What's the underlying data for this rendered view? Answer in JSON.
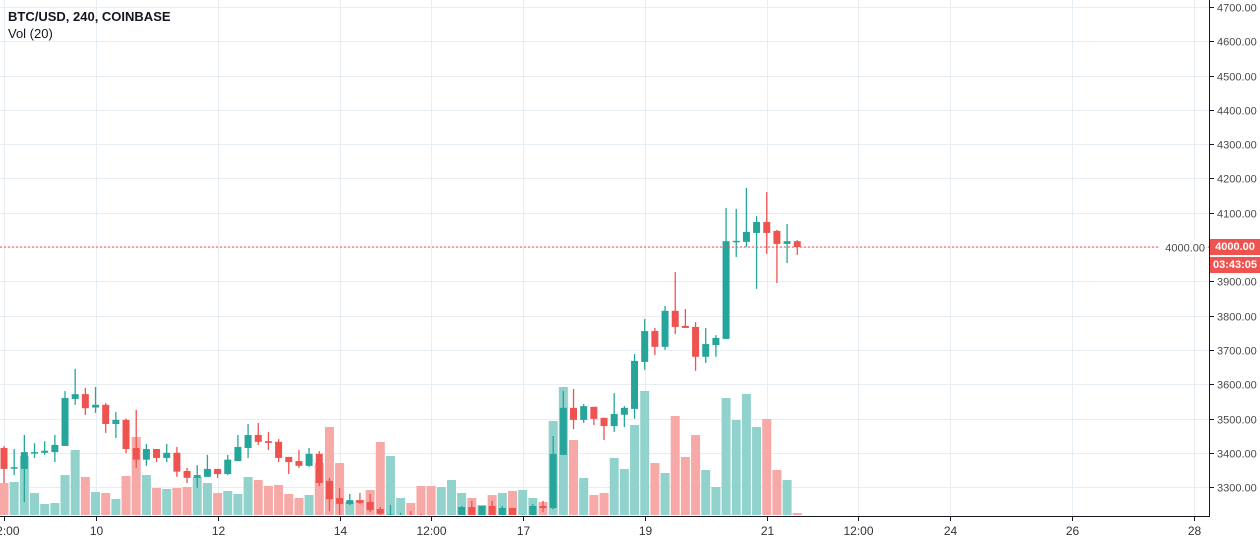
{
  "header": {
    "symbol": "BTC/USD, 240, COINBASE",
    "indicator": "Vol (20)"
  },
  "current_price": {
    "label": "4000.00",
    "countdown": "03:43:05"
  },
  "colors": {
    "up": "#26a69a",
    "down": "#ef5350",
    "up_volume": "#92d2cc",
    "down_volume": "#f7a9a7",
    "grid": "#e6edf3"
  },
  "chart_data": {
    "type": "candlestick",
    "title": "BTC/USD, 240, COINBASE",
    "ylim": [
      3219,
      4720
    ],
    "grid": true,
    "y_ticks": [
      "4700.00",
      "4600.00",
      "4500.00",
      "4400.00",
      "4300.00",
      "4200.00",
      "4100.00",
      "4000.00",
      "3900.00",
      "3800.00",
      "3700.00",
      "3600.00",
      "3500.00",
      "3400.00",
      "3300.00"
    ],
    "x_ticks": [
      "12:00",
      "10",
      "12",
      "14",
      "12:00",
      "17",
      "19",
      "21",
      "12:00",
      "24",
      "26",
      "28"
    ],
    "candle_fields": [
      "open",
      "high",
      "low",
      "close",
      "volume"
    ],
    "candles": [
      [
        3414,
        3420,
        3312,
        3353,
        32
      ],
      [
        3354,
        3411,
        3335,
        3358,
        33
      ],
      [
        3353,
        3452,
        3256,
        3402,
        59
      ],
      [
        3400,
        3428,
        3385,
        3402,
        22
      ],
      [
        3400,
        3434,
        3394,
        3406,
        11
      ],
      [
        3402,
        3452,
        3373,
        3423,
        12
      ],
      [
        3420,
        3580,
        3420,
        3560,
        40
      ],
      [
        3557,
        3645,
        3540,
        3571,
        65
      ],
      [
        3571,
        3589,
        3510,
        3530,
        38
      ],
      [
        3532,
        3592,
        3516,
        3540,
        23
      ],
      [
        3540,
        3545,
        3458,
        3484,
        22
      ],
      [
        3484,
        3519,
        3443,
        3496,
        16
      ],
      [
        3496,
        3500,
        3399,
        3411,
        39
      ],
      [
        3414,
        3525,
        3356,
        3380,
        78
      ],
      [
        3380,
        3426,
        3362,
        3411,
        40
      ],
      [
        3411,
        3411,
        3373,
        3385,
        27
      ],
      [
        3385,
        3426,
        3373,
        3400,
        26
      ],
      [
        3400,
        3417,
        3330,
        3345,
        27
      ],
      [
        3347,
        3356,
        3312,
        3327,
        28
      ],
      [
        3327,
        3364,
        3298,
        3335,
        38
      ],
      [
        3330,
        3394,
        3330,
        3353,
        32
      ],
      [
        3353,
        3353,
        3327,
        3338,
        22
      ],
      [
        3338,
        3394,
        3335,
        3380,
        24
      ],
      [
        3376,
        3452,
        3376,
        3417,
        21
      ],
      [
        3414,
        3484,
        3385,
        3452,
        38
      ],
      [
        3452,
        3487,
        3423,
        3432,
        35
      ],
      [
        3434,
        3461,
        3408,
        3429,
        29
      ],
      [
        3432,
        3440,
        3373,
        3385,
        30
      ],
      [
        3388,
        3388,
        3338,
        3373,
        21
      ],
      [
        3376,
        3408,
        3356,
        3362,
        17
      ],
      [
        3362,
        3414,
        3359,
        3397,
        20
      ],
      [
        3397,
        3405,
        3303,
        3312,
        52
      ],
      [
        3318,
        3327,
        3230,
        3265,
        88
      ],
      [
        3268,
        3298,
        3219,
        3251,
        52
      ],
      [
        3251,
        3280,
        3248,
        3262,
        13
      ],
      [
        3262,
        3283,
        3251,
        3254,
        15
      ],
      [
        3257,
        3280,
        3227,
        3233,
        25
      ],
      [
        3236,
        3242,
        3210,
        3222,
        73
      ],
      [
        3215,
        3248,
        3200,
        3220,
        59
      ],
      [
        3215,
        3225,
        3210,
        3218,
        17
      ],
      [
        3218,
        3230,
        3205,
        3214,
        12
      ],
      [
        3214,
        3222,
        3195,
        3205,
        29
      ],
      [
        3205,
        3212,
        3192,
        3200,
        29
      ],
      [
        3200,
        3218,
        3195,
        3214,
        28
      ],
      [
        3214,
        3220,
        3205,
        3216,
        35
      ],
      [
        3205,
        3245,
        3200,
        3242,
        22
      ],
      [
        3242,
        3260,
        3200,
        3210,
        17
      ],
      [
        3210,
        3245,
        3205,
        3245,
        10
      ],
      [
        3245,
        3260,
        3205,
        3210,
        20
      ],
      [
        3210,
        3245,
        3205,
        3239,
        22
      ],
      [
        3239,
        3239,
        3200,
        3212,
        24
      ],
      [
        3212,
        3220,
        3205,
        3215,
        25
      ],
      [
        3212,
        3251,
        3205,
        3245,
        17
      ],
      [
        3245,
        3260,
        3227,
        3239,
        13
      ],
      [
        3239,
        3449,
        3235,
        3397,
        94
      ],
      [
        3394,
        3580,
        3394,
        3531,
        128
      ],
      [
        3531,
        3586,
        3469,
        3496,
        75
      ],
      [
        3496,
        3542,
        3487,
        3536,
        37
      ],
      [
        3534,
        3534,
        3481,
        3499,
        20
      ],
      [
        3502,
        3502,
        3437,
        3478,
        22
      ],
      [
        3478,
        3574,
        3461,
        3513,
        57
      ],
      [
        3511,
        3536,
        3475,
        3531,
        46
      ],
      [
        3528,
        3688,
        3499,
        3668,
        90
      ],
      [
        3665,
        3790,
        3642,
        3755,
        124
      ],
      [
        3755,
        3764,
        3685,
        3709,
        52
      ],
      [
        3709,
        3828,
        3700,
        3814,
        42
      ],
      [
        3814,
        3927,
        3746,
        3767,
        99
      ],
      [
        3770,
        3819,
        3764,
        3764,
        58
      ],
      [
        3767,
        3781,
        3639,
        3680,
        80
      ],
      [
        3680,
        3764,
        3662,
        3717,
        45
      ],
      [
        3714,
        3743,
        3680,
        3735,
        28
      ],
      [
        3732,
        4114,
        3732,
        4017,
        117
      ],
      [
        4015,
        4111,
        3971,
        4018,
        95
      ],
      [
        4015,
        4172,
        4000,
        4044,
        121
      ],
      [
        4041,
        4090,
        3878,
        4073,
        88
      ],
      [
        4073,
        4160,
        3980,
        4041,
        96
      ],
      [
        4047,
        4050,
        3895,
        4009,
        45
      ],
      [
        4009,
        4067,
        3953,
        4017,
        35
      ],
      [
        4017,
        4020,
        3977,
        4000,
        2
      ]
    ]
  }
}
